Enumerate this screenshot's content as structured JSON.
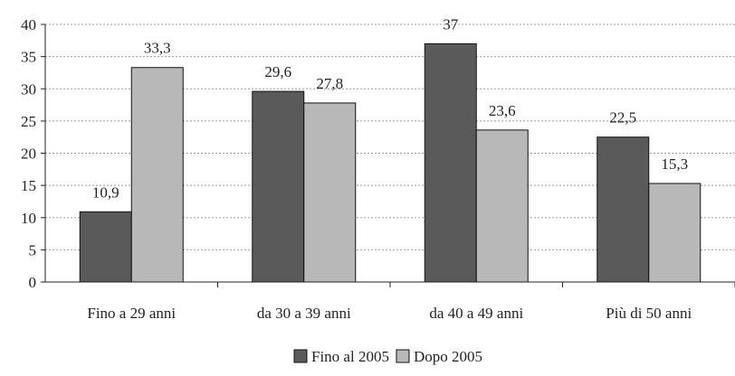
{
  "chart_data": {
    "type": "bar",
    "categories": [
      "Fino a 29 anni",
      "da 30 a 39 anni",
      "da 40 a 49 anni",
      "Più di 50 anni"
    ],
    "series": [
      {
        "name": "Fino al 2005",
        "values": [
          10.9,
          29.6,
          37,
          22.5
        ],
        "labels": [
          "10,9",
          "29,6",
          "37",
          "22,5"
        ],
        "color": "#5a5a5a"
      },
      {
        "name": "Dopo 2005",
        "values": [
          33.3,
          27.8,
          23.6,
          15.3
        ],
        "labels": [
          "33,3",
          "27,8",
          "23,6",
          "15,3"
        ],
        "color": "#b8b8b8"
      }
    ],
    "ylim": [
      0,
      40
    ],
    "yticks": [
      0,
      5,
      10,
      15,
      20,
      25,
      30,
      35,
      40
    ],
    "grid": true,
    "legend_position": "bottom-center"
  }
}
